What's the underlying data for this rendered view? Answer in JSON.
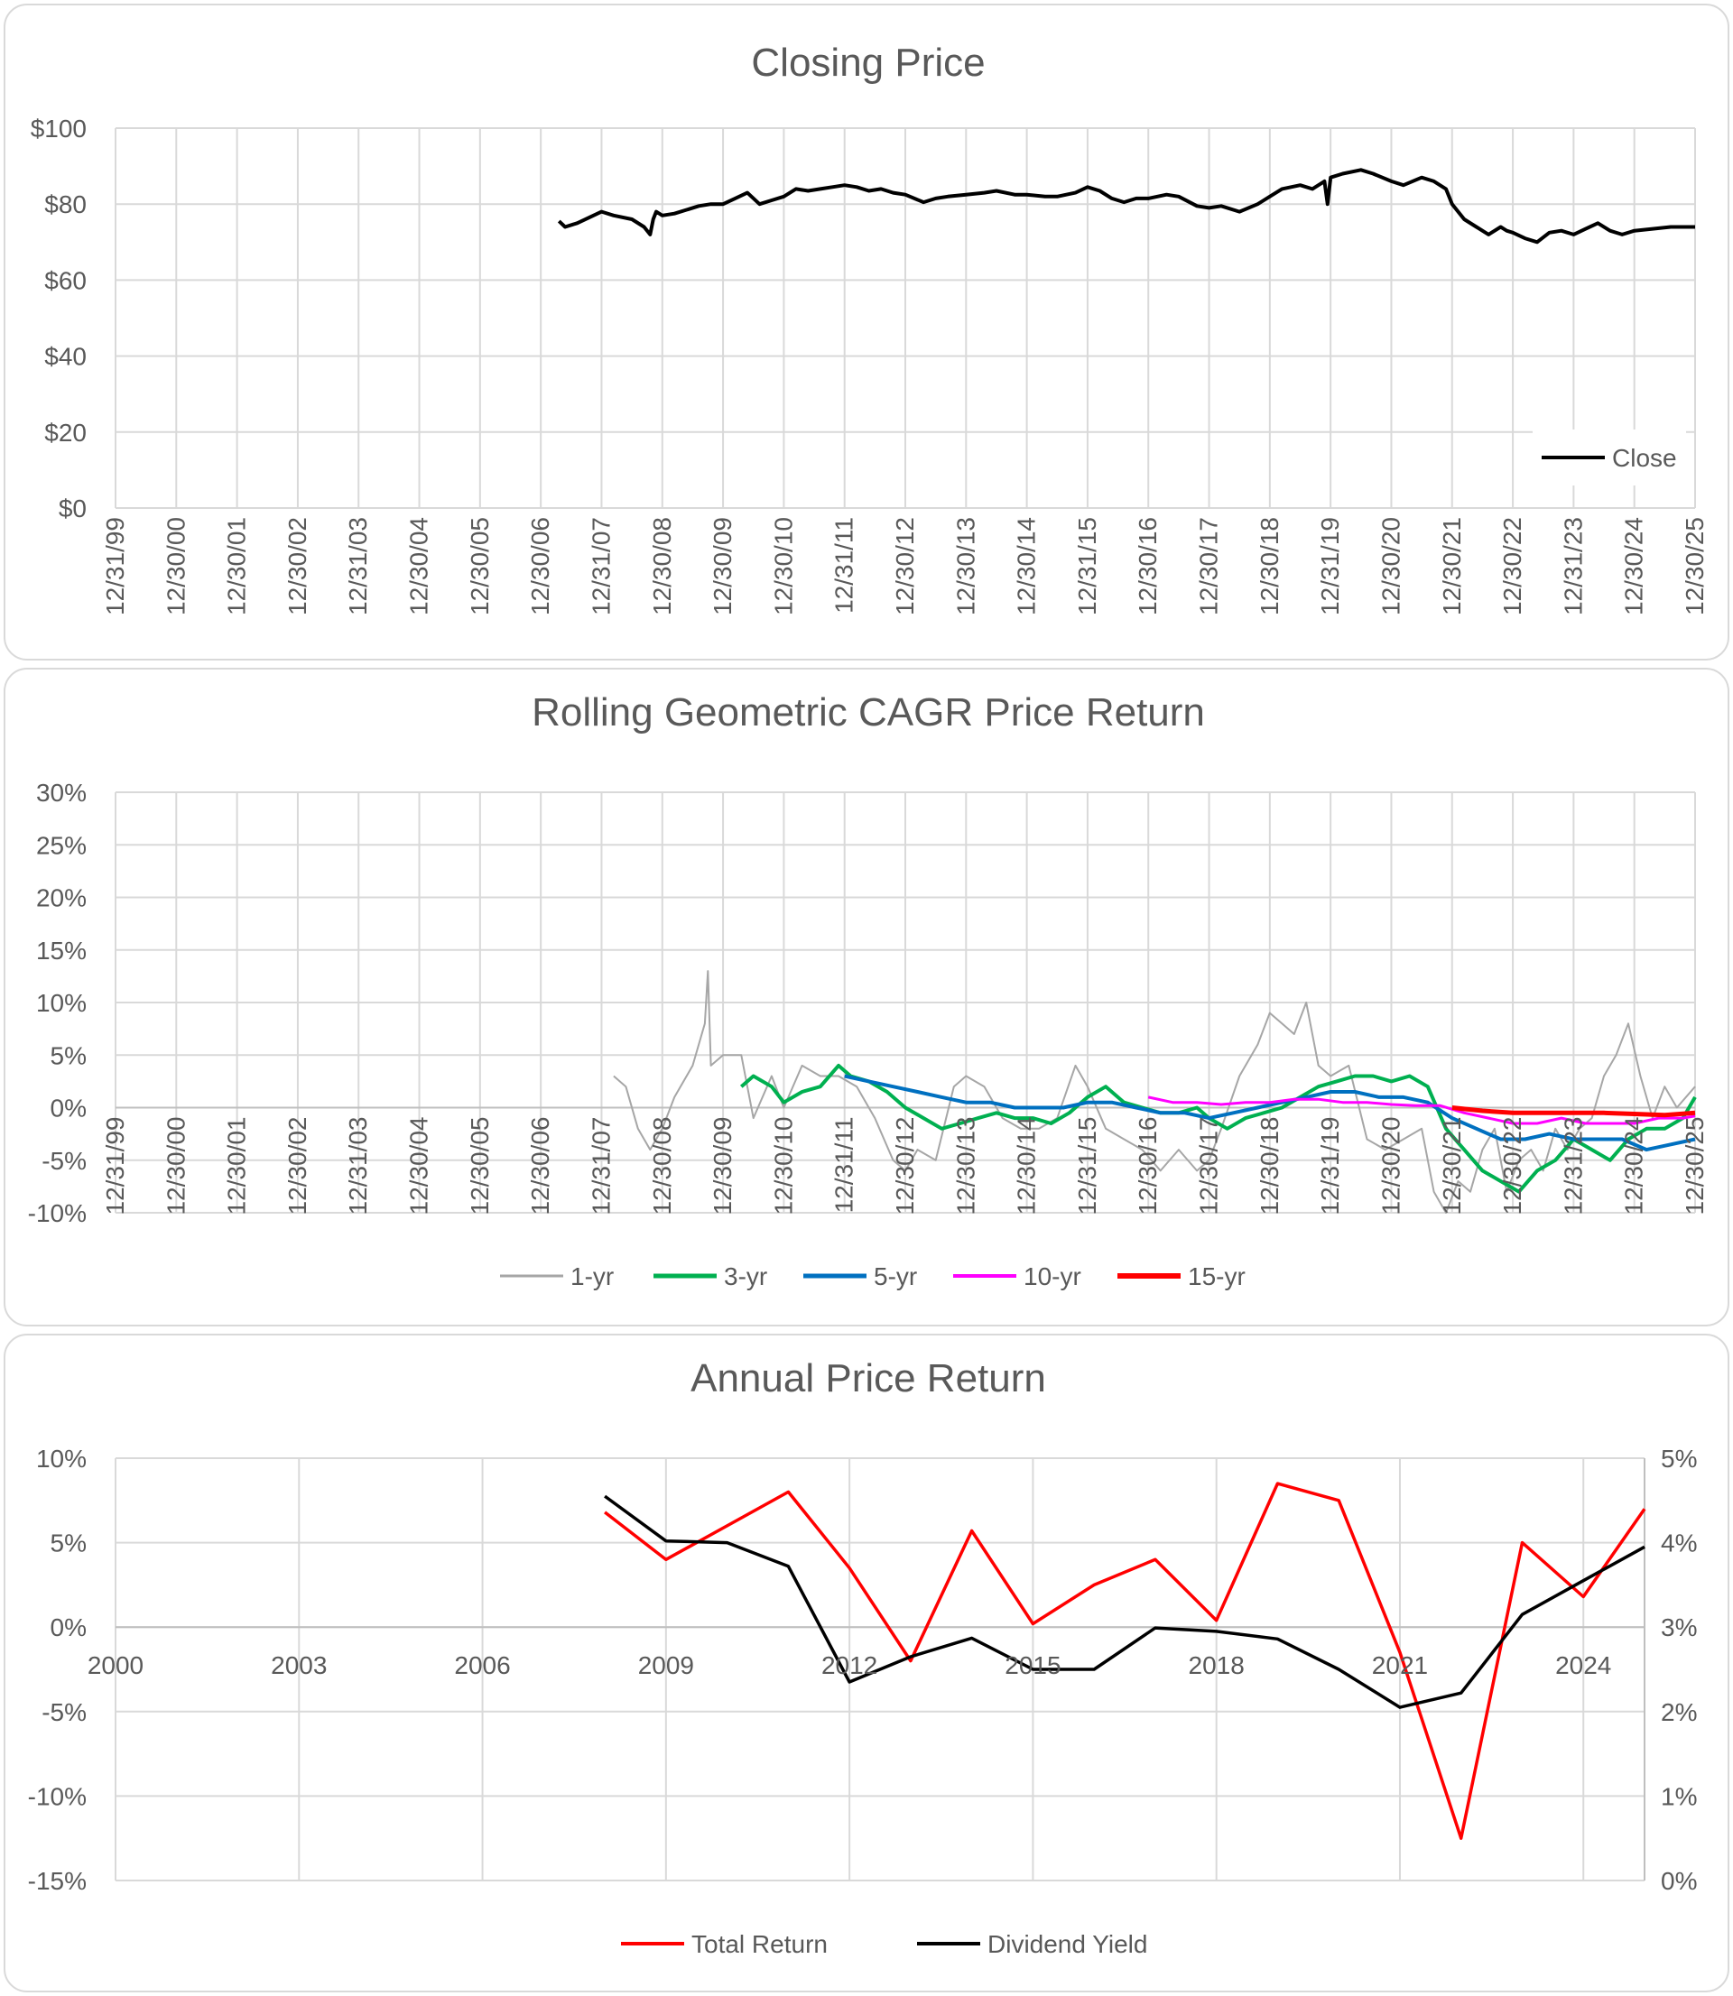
{
  "chart_data": [
    {
      "type": "line",
      "title": "Closing Price",
      "yticks": [
        "$0",
        "$20",
        "$40",
        "$60",
        "$80",
        "$100"
      ],
      "ylim": [
        0,
        100
      ],
      "xticks": [
        "12/31/99",
        "12/30/00",
        "12/30/01",
        "12/30/02",
        "12/31/03",
        "12/30/04",
        "12/30/05",
        "12/30/06",
        "12/31/07",
        "12/30/08",
        "12/30/09",
        "12/30/10",
        "12/31/11",
        "12/30/12",
        "12/30/13",
        "12/30/14",
        "12/31/15",
        "12/30/16",
        "12/30/17",
        "12/30/18",
        "12/31/19",
        "12/30/20",
        "12/30/21",
        "12/30/22",
        "12/31/23",
        "12/30/24",
        "12/30/25"
      ],
      "xlim": [
        2000,
        2026
      ],
      "legend": {
        "position": "bottom-right",
        "entries": [
          "Close"
        ]
      },
      "series": [
        {
          "name": "Close",
          "color": "#000000",
          "x": [
            2007.3,
            2007.4,
            2007.6,
            2007.8,
            2008.0,
            2008.2,
            2008.5,
            2008.7,
            2008.8,
            2008.85,
            2008.9,
            2009.0,
            2009.2,
            2009.4,
            2009.6,
            2009.8,
            2010.0,
            2010.2,
            2010.4,
            2010.6,
            2010.8,
            2011.0,
            2011.2,
            2011.4,
            2011.6,
            2011.8,
            2012.0,
            2012.2,
            2012.4,
            2012.6,
            2012.8,
            2013.0,
            2013.3,
            2013.5,
            2013.7,
            2014.0,
            2014.3,
            2014.5,
            2014.8,
            2015.0,
            2015.3,
            2015.5,
            2015.8,
            2016.0,
            2016.2,
            2016.4,
            2016.6,
            2016.8,
            2017.0,
            2017.3,
            2017.5,
            2017.8,
            2018.0,
            2018.2,
            2018.5,
            2018.8,
            2019.0,
            2019.2,
            2019.5,
            2019.7,
            2019.9,
            2019.95,
            2020.0,
            2020.2,
            2020.5,
            2020.7,
            2021.0,
            2021.2,
            2021.5,
            2021.7,
            2021.9,
            2022.0,
            2022.2,
            2022.4,
            2022.6,
            2022.8,
            2022.9,
            2023.0,
            2023.2,
            2023.4,
            2023.6,
            2023.8,
            2024.0,
            2024.2,
            2024.4,
            2024.6,
            2024.8,
            2025.0,
            2025.3,
            2025.6,
            2026.0
          ],
          "y": [
            75.5,
            74,
            75,
            76.5,
            78,
            77,
            76,
            74,
            72,
            76,
            78,
            77,
            77.5,
            78.5,
            79.5,
            80,
            80,
            81.5,
            83,
            80,
            81,
            82,
            84,
            83.5,
            84,
            84.5,
            85,
            84.5,
            83.5,
            84,
            83,
            82.5,
            80.5,
            81.5,
            82,
            82.5,
            83,
            83.5,
            82.5,
            82.5,
            82,
            82,
            83,
            84.5,
            83.5,
            81.5,
            80.5,
            81.5,
            81.5,
            82.5,
            82,
            79.5,
            79,
            79.5,
            78,
            80,
            82,
            84,
            85,
            84,
            86,
            80,
            87,
            88,
            89,
            88,
            86,
            85,
            87,
            86,
            84,
            80,
            76,
            74,
            72,
            74,
            73,
            72.5,
            71,
            70,
            72.5,
            73,
            72,
            73.5,
            75,
            73,
            72,
            73,
            73.5,
            74,
            74
          ]
        }
      ]
    },
    {
      "type": "line",
      "title": "Rolling Geometric CAGR Price Return",
      "yticks": [
        "-10%",
        "-5%",
        "0%",
        "5%",
        "10%",
        "15%",
        "20%",
        "25%",
        "30%"
      ],
      "ylim": [
        -10,
        30
      ],
      "xticks": [
        "12/31/99",
        "12/30/00",
        "12/30/01",
        "12/30/02",
        "12/31/03",
        "12/30/04",
        "12/30/05",
        "12/30/06",
        "12/31/07",
        "12/30/08",
        "12/30/09",
        "12/30/10",
        "12/31/11",
        "12/30/12",
        "12/30/13",
        "12/30/14",
        "12/31/15",
        "12/30/16",
        "12/30/17",
        "12/30/18",
        "12/31/19",
        "12/30/20",
        "12/30/21",
        "12/30/22",
        "12/31/23",
        "12/30/24",
        "12/30/25"
      ],
      "xlim": [
        2000,
        2026
      ],
      "legend": {
        "position": "bottom",
        "entries": [
          "1-yr",
          "3-yr",
          "5-yr",
          "10-yr",
          "15-yr"
        ]
      },
      "series": [
        {
          "name": "1-yr",
          "color": "#a6a6a6",
          "x": [
            2008.2,
            2008.4,
            2008.6,
            2008.8,
            2009.0,
            2009.2,
            2009.5,
            2009.7,
            2009.75,
            2009.8,
            2010.0,
            2010.3,
            2010.5,
            2010.8,
            2011.0,
            2011.3,
            2011.6,
            2011.9,
            2012.2,
            2012.5,
            2012.8,
            2013.0,
            2013.2,
            2013.5,
            2013.8,
            2014.0,
            2014.3,
            2014.6,
            2014.9,
            2015.2,
            2015.5,
            2015.8,
            2016.0,
            2016.3,
            2016.6,
            2016.9,
            2017.2,
            2017.5,
            2017.8,
            2018.0,
            2018.2,
            2018.5,
            2018.8,
            2019.0,
            2019.2,
            2019.4,
            2019.6,
            2019.8,
            2020.0,
            2020.3,
            2020.6,
            2020.9,
            2021.2,
            2021.5,
            2021.7,
            2021.9,
            2022.1,
            2022.3,
            2022.5,
            2022.7,
            2022.9,
            2023.1,
            2023.3,
            2023.5,
            2023.7,
            2023.9,
            2024.1,
            2024.3,
            2024.5,
            2024.7,
            2024.9,
            2025.1,
            2025.3,
            2025.5,
            2025.7,
            2026.0
          ],
          "y": [
            3,
            2,
            -2,
            -4,
            -2,
            1,
            4,
            8,
            13,
            4,
            5,
            5,
            -1,
            3,
            0,
            4,
            3,
            3,
            2,
            -1,
            -5,
            -6,
            -4,
            -5,
            2,
            3,
            2,
            -1,
            -2,
            -2,
            -1,
            4,
            2,
            -2,
            -3,
            -4,
            -6,
            -4,
            -6,
            -5,
            -2,
            3,
            6,
            9,
            8,
            7,
            10,
            4,
            3,
            4,
            -3,
            -4,
            -3,
            -2,
            -8,
            -10,
            -7,
            -8,
            -4,
            -2,
            -8,
            -5,
            -4,
            -6,
            -2,
            -4,
            -2,
            -1,
            3,
            5,
            8,
            3,
            -1,
            2,
            0,
            2
          ]
        },
        {
          "name": "3-yr",
          "color": "#00b050",
          "x": [
            2010.3,
            2010.5,
            2010.8,
            2011.0,
            2011.3,
            2011.6,
            2011.9,
            2012.1,
            2012.4,
            2012.7,
            2013.0,
            2013.3,
            2013.6,
            2013.9,
            2014.2,
            2014.5,
            2014.8,
            2015.1,
            2015.4,
            2015.7,
            2016.0,
            2016.3,
            2016.6,
            2016.9,
            2017.2,
            2017.5,
            2017.8,
            2018.0,
            2018.3,
            2018.6,
            2018.9,
            2019.2,
            2019.5,
            2019.8,
            2020.1,
            2020.4,
            2020.7,
            2021.0,
            2021.3,
            2021.6,
            2021.9,
            2022.2,
            2022.5,
            2022.8,
            2023.1,
            2023.4,
            2023.7,
            2024.0,
            2024.3,
            2024.6,
            2024.9,
            2025.2,
            2025.5,
            2025.8,
            2026.0
          ],
          "y": [
            2,
            3,
            2,
            0.5,
            1.5,
            2,
            4,
            3,
            2.5,
            1.5,
            0,
            -1,
            -2,
            -1.5,
            -1,
            -0.5,
            -1,
            -1,
            -1.5,
            -0.5,
            1,
            2,
            0.5,
            0,
            -0.5,
            -0.5,
            0,
            -1,
            -2,
            -1,
            -0.5,
            0,
            1,
            2,
            2.5,
            3,
            3,
            2.5,
            3,
            2,
            -2,
            -4,
            -6,
            -7,
            -8,
            -6,
            -5,
            -3,
            -4,
            -5,
            -3,
            -2,
            -2,
            -1,
            1
          ]
        },
        {
          "name": "5-yr",
          "color": "#0070c0",
          "x": [
            2012.0,
            2012.4,
            2012.8,
            2013.2,
            2013.6,
            2014.0,
            2014.4,
            2014.8,
            2015.2,
            2015.6,
            2016.0,
            2016.4,
            2016.8,
            2017.2,
            2017.6,
            2018.0,
            2018.4,
            2018.8,
            2019.2,
            2019.6,
            2020.0,
            2020.4,
            2020.8,
            2021.2,
            2021.6,
            2022.0,
            2022.4,
            2022.8,
            2023.2,
            2023.6,
            2024.0,
            2024.4,
            2024.8,
            2025.2,
            2025.6,
            2026.0
          ],
          "y": [
            3,
            2.5,
            2,
            1.5,
            1,
            0.5,
            0.5,
            0,
            0,
            0,
            0.5,
            0.5,
            0,
            -0.5,
            -0.5,
            -1,
            -0.5,
            0,
            0.5,
            1,
            1.5,
            1.5,
            1,
            1,
            0.5,
            -1,
            -2,
            -3,
            -3,
            -2.5,
            -3,
            -3,
            -3,
            -4,
            -3.5,
            -3
          ]
        },
        {
          "name": "10-yr",
          "color": "#ff00ff",
          "x": [
            2017.0,
            2017.4,
            2017.8,
            2018.2,
            2018.6,
            2019.0,
            2019.4,
            2019.8,
            2020.2,
            2020.6,
            2021.0,
            2021.4,
            2021.8,
            2022.2,
            2022.6,
            2023.0,
            2023.4,
            2023.8,
            2024.2,
            2024.6,
            2025.0,
            2025.4,
            2025.8,
            2026.0
          ],
          "y": [
            1,
            0.5,
            0.5,
            0.3,
            0.5,
            0.5,
            0.8,
            0.8,
            0.5,
            0.5,
            0.3,
            0.2,
            0.2,
            -0.5,
            -1,
            -1.5,
            -1.5,
            -1,
            -1.5,
            -1.5,
            -1.5,
            -1,
            -1,
            -0.8
          ]
        },
        {
          "name": "15-yr",
          "color": "#ff0000",
          "x": [
            2022.0,
            2022.5,
            2023.0,
            2023.5,
            2024.0,
            2024.5,
            2025.0,
            2025.5,
            2026.0
          ],
          "y": [
            0,
            -0.3,
            -0.5,
            -0.5,
            -0.5,
            -0.5,
            -0.6,
            -0.7,
            -0.5
          ]
        }
      ]
    },
    {
      "type": "line",
      "title": "Annual Price Return",
      "yticks_left": [
        "-15%",
        "-10%",
        "-5%",
        "0%",
        "5%",
        "10%"
      ],
      "ylim_left": [
        -15,
        10
      ],
      "yticks_right": [
        "0%",
        "1%",
        "2%",
        "3%",
        "4%",
        "5%"
      ],
      "ylim_right": [
        0,
        5
      ],
      "xticks": [
        "2000",
        "2003",
        "2006",
        "2009",
        "2012",
        "2015",
        "2018",
        "2021",
        "2024"
      ],
      "xlim": [
        2000,
        2025
      ],
      "legend": {
        "position": "bottom",
        "entries": [
          "Total Return",
          "Dividend Yield"
        ]
      },
      "series": [
        {
          "name": "Total Return",
          "color": "#ff0000",
          "axis": "left",
          "x": [
            2008,
            2009,
            2010,
            2011,
            2012,
            2013,
            2014,
            2015,
            2016,
            2017,
            2018,
            2019,
            2020,
            2021,
            2022,
            2023,
            2024,
            2025
          ],
          "y": [
            6.8,
            4,
            6,
            8,
            3.5,
            -2,
            5.7,
            0.2,
            2.5,
            4,
            0.4,
            8.5,
            7.5,
            -1.5,
            -12.5,
            5,
            1.8,
            7
          ]
        },
        {
          "name": "Dividend Yield",
          "color": "#000000",
          "axis": "right",
          "x": [
            2008,
            2009,
            2010,
            2011,
            2012,
            2013,
            2014,
            2015,
            2016,
            2017,
            2018,
            2019,
            2020,
            2021,
            2022,
            2023,
            2024,
            2025
          ],
          "y": [
            4.55,
            4.02,
            4.0,
            3.72,
            2.35,
            2.65,
            2.87,
            2.5,
            2.5,
            2.99,
            2.95,
            2.86,
            2.5,
            2.05,
            2.22,
            3.15,
            3.55,
            3.95
          ]
        }
      ]
    }
  ]
}
